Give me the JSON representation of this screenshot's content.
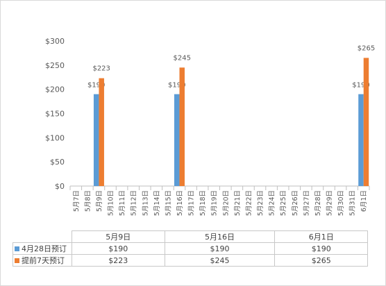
{
  "colors": {
    "booking_28": "#5b9bd5",
    "booking_7": "#ed7d31",
    "axis": "#bfbfbf",
    "text": "#595959"
  },
  "chart_data": {
    "type": "bar",
    "categories": [
      "5月7日",
      "5月8日",
      "5月9日",
      "5月10日",
      "5月11日",
      "5月12日",
      "5月13日",
      "5月14日",
      "5月15日",
      "5月16日",
      "5月17日",
      "5月18日",
      "5月19日",
      "5月20日",
      "5月21日",
      "5月22日",
      "5月23日",
      "5月24日",
      "5月25日",
      "5月26日",
      "5月27日",
      "5月28日",
      "5月29日",
      "5月30日",
      "5月31日",
      "6月1日"
    ],
    "series": [
      {
        "name": "4月28日预订",
        "values": [
          null,
          null,
          190,
          null,
          null,
          null,
          null,
          null,
          null,
          190,
          null,
          null,
          null,
          null,
          null,
          null,
          null,
          null,
          null,
          null,
          null,
          null,
          null,
          null,
          null,
          190
        ]
      },
      {
        "name": "提前7天预订",
        "values": [
          null,
          null,
          223,
          null,
          null,
          null,
          null,
          null,
          null,
          245,
          null,
          null,
          null,
          null,
          null,
          null,
          null,
          null,
          null,
          null,
          null,
          null,
          null,
          null,
          null,
          265
        ]
      }
    ],
    "yticks": [
      "$0",
      "$50",
      "$100",
      "$150",
      "$200",
      "$250",
      "$300"
    ],
    "ylim": [
      0,
      300
    ],
    "grid": false,
    "data_labels": {
      "booking_28": "$190",
      "booking_7": [
        "$223",
        "$245",
        "$265"
      ]
    }
  },
  "table": {
    "columns": [
      "5月9日",
      "5月16日",
      "6月1日"
    ],
    "rows": [
      {
        "label": "4月28日预订",
        "values": [
          "$190",
          "$190",
          "$190"
        ]
      },
      {
        "label": "提前7天预订",
        "values": [
          "$223",
          "$245",
          "$265"
        ]
      }
    ]
  }
}
